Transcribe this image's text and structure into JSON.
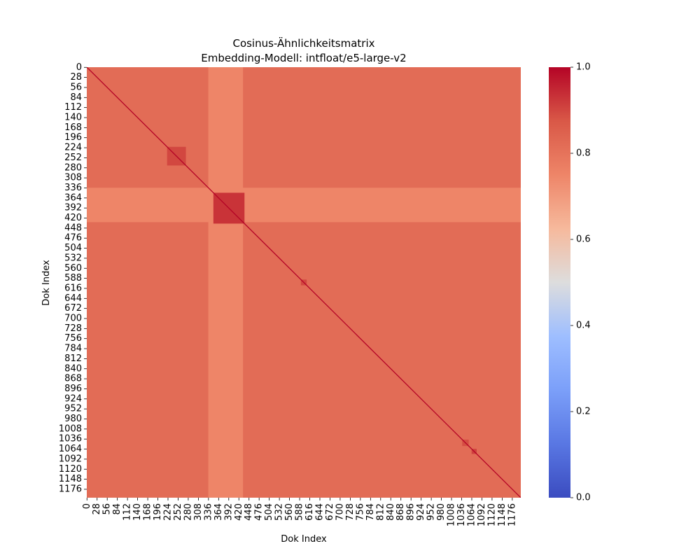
{
  "chart_data": {
    "type": "heatmap",
    "title": "Cosinus-Ähnlichkeitsmatrix",
    "subtitle": "Embedding-Modell: intfloat/e5-large-v2",
    "xlabel": "Dok Index",
    "ylabel": "Dok Index",
    "matrix_size": 1200,
    "colormap": "coolwarm",
    "vmin": 0.0,
    "vmax": 1.0,
    "colorbar_ticks": [
      0.0,
      0.2,
      0.4,
      0.6,
      0.8,
      1.0
    ],
    "colorbar_tick_labels": [
      "0.0",
      "0.2",
      "0.4",
      "0.6",
      "0.8",
      "1.0"
    ],
    "x_tick_labels": [
      "0",
      "28",
      "56",
      "84",
      "112",
      "140",
      "168",
      "196",
      "224",
      "252",
      "280",
      "308",
      "336",
      "364",
      "392",
      "420",
      "448",
      "476",
      "504",
      "532",
      "560",
      "588",
      "616",
      "644",
      "672",
      "700",
      "728",
      "756",
      "784",
      "812",
      "840",
      "868",
      "896",
      "924",
      "952",
      "980",
      "1008",
      "1036",
      "1064",
      "1092",
      "1120",
      "1148",
      "1176"
    ],
    "y_tick_labels": [
      "0",
      "28",
      "56",
      "84",
      "112",
      "140",
      "168",
      "196",
      "224",
      "252",
      "280",
      "308",
      "336",
      "364",
      "392",
      "420",
      "448",
      "476",
      "504",
      "532",
      "560",
      "588",
      "616",
      "644",
      "672",
      "700",
      "728",
      "756",
      "784",
      "812",
      "840",
      "868",
      "896",
      "924",
      "952",
      "980",
      "1008",
      "1036",
      "1064",
      "1092",
      "1120",
      "1148",
      "1176"
    ],
    "background_similarity": 0.82,
    "diagonal_similarity": 1.0,
    "low_similarity_band": {
      "from": 336,
      "to": 432,
      "value": 0.75
    },
    "high_similarity_blocks": [
      {
        "from": 222,
        "to": 274,
        "value": 0.9
      },
      {
        "from": 350,
        "to": 436,
        "value": 0.93
      },
      {
        "from": 592,
        "to": 608,
        "value": 0.9
      },
      {
        "from": 1038,
        "to": 1056,
        "value": 0.89
      },
      {
        "from": 1064,
        "to": 1078,
        "value": 0.91
      }
    ],
    "grid": false
  }
}
